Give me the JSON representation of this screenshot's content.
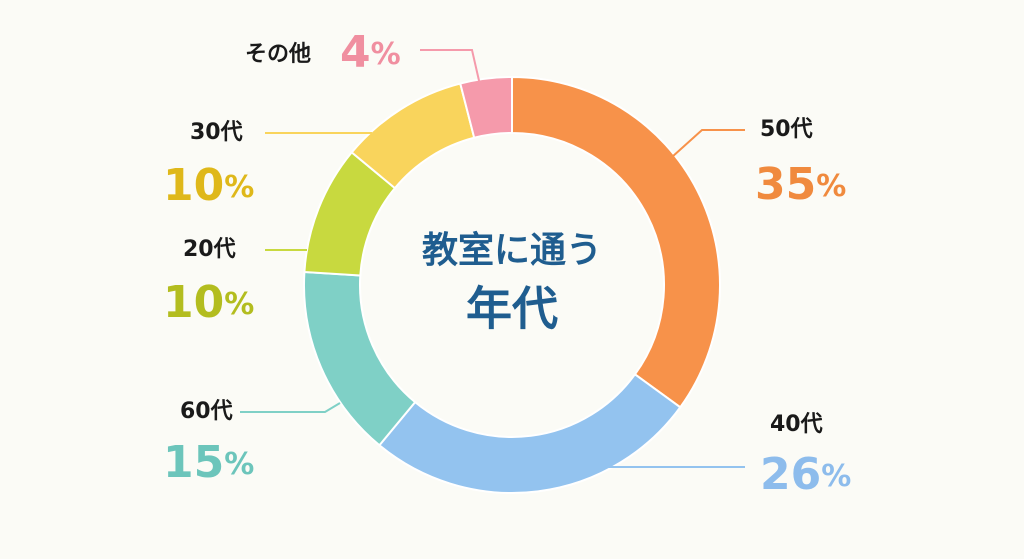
{
  "chart_data": {
    "type": "donut",
    "center_text": [
      "教室に通う",
      "年代"
    ],
    "categories": [
      "50代",
      "40代",
      "60代",
      "20代",
      "30代",
      "その他"
    ],
    "values": [
      35,
      26,
      15,
      10,
      10,
      4
    ],
    "value_labels": [
      "35%",
      "26%",
      "15%",
      "10%",
      "10%",
      "4%"
    ],
    "colors": [
      "#f7924a",
      "#93c3ef",
      "#7fd0c6",
      "#c8d93f",
      "#f9d45c",
      "#f59aab"
    ],
    "label_colors": [
      "#f08a3e",
      "#8dbcec",
      "#6cc5bb",
      "#b3bd1f",
      "#dfb81a",
      "#f08fa0"
    ]
  }
}
